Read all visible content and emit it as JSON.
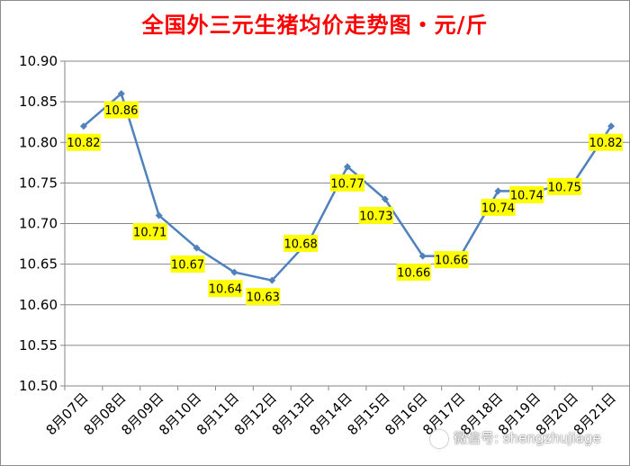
{
  "chart_data": {
    "type": "line",
    "title": "全国外三元生猪均价走势图・元/斤",
    "xlabel": "",
    "ylabel": "",
    "ylim": [
      10.5,
      10.9
    ],
    "ytick_step": 0.05,
    "grid": true,
    "legend": "none",
    "categories": [
      "8月07日",
      "8月08日",
      "8月09日",
      "8月10日",
      "8月11日",
      "8月12日",
      "8月13日",
      "8月14日",
      "8月15日",
      "8月16日",
      "8月17日",
      "8月18日",
      "8月19日",
      "8月20日",
      "8月21日"
    ],
    "values": [
      10.82,
      10.86,
      10.71,
      10.67,
      10.64,
      10.63,
      10.68,
      10.77,
      10.73,
      10.66,
      10.66,
      10.74,
      10.74,
      10.75,
      10.82
    ],
    "data_labels": [
      "10.82",
      "10.86",
      "10.71",
      "10.67",
      "10.64",
      "10.63",
      "10.68",
      "10.77",
      "10.73",
      "10.66",
      "10.66",
      "10.74",
      "10.74",
      "10.75",
      "10.82"
    ]
  },
  "colors": {
    "line": "#4f81bd",
    "label_bg": "#ffff00",
    "title": "#ff0000",
    "grid": "#868686"
  },
  "watermark": {
    "text": "微信号: shengzhujiage",
    "icon": "wechat-icon"
  }
}
